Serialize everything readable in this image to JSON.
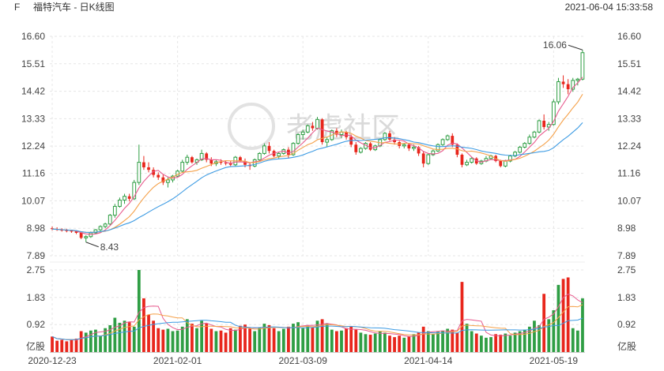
{
  "header": {
    "symbol": "F",
    "title": "福特汽车 - 日K线图",
    "datetime": "2021-06-04 15:33:58"
  },
  "watermark": "老虎社区",
  "colors": {
    "up": "#2f9e44",
    "down": "#e8261c",
    "ma5": "#e75a8d",
    "ma10": "#f5a14a",
    "ma20": "#3d9be3",
    "grid": "#e6e6e6"
  },
  "chart_data": [
    {
      "type": "candlestick",
      "title": "",
      "price_ticks": [
        "16.60",
        "15.51",
        "14.42",
        "13.33",
        "12.24",
        "11.16",
        "10.07",
        "8.98",
        "7.89"
      ],
      "ylim": [
        7.89,
        16.6
      ],
      "x_tick_labels": [
        "2020-12-23",
        "2021-02-01",
        "2021-03-09",
        "2021-04-14",
        "2021-05-19"
      ],
      "annotations": [
        {
          "label": "16.06",
          "value": 16.06,
          "index": 110
        },
        {
          "label": "8.43",
          "value": 8.43,
          "index": 7
        }
      ],
      "ma_lines": [
        "MA5",
        "MA10",
        "MA20"
      ],
      "ohlc": [
        [
          8.98,
          9.05,
          8.9,
          8.95
        ],
        [
          8.95,
          9.02,
          8.88,
          8.92
        ],
        [
          8.92,
          8.98,
          8.85,
          8.9
        ],
        [
          8.9,
          8.96,
          8.82,
          8.88
        ],
        [
          8.88,
          8.92,
          8.8,
          8.86
        ],
        [
          8.86,
          8.9,
          8.75,
          8.8
        ],
        [
          8.8,
          8.82,
          8.55,
          8.6
        ],
        [
          8.6,
          8.7,
          8.43,
          8.65
        ],
        [
          8.65,
          8.85,
          8.6,
          8.8
        ],
        [
          8.8,
          8.95,
          8.75,
          8.92
        ],
        [
          8.92,
          9.1,
          8.85,
          9.05
        ],
        [
          9.05,
          9.2,
          8.98,
          9.15
        ],
        [
          9.15,
          9.55,
          9.1,
          9.5
        ],
        [
          9.5,
          9.95,
          9.4,
          9.85
        ],
        [
          9.85,
          10.2,
          9.8,
          10.1
        ],
        [
          10.1,
          10.35,
          9.95,
          10.25
        ],
        [
          10.25,
          10.35,
          10.05,
          10.15
        ],
        [
          10.15,
          10.9,
          10.1,
          10.8
        ],
        [
          10.8,
          12.3,
          10.7,
          11.6
        ],
        [
          11.6,
          11.85,
          11.3,
          11.4
        ],
        [
          11.4,
          11.6,
          11.2,
          11.3
        ],
        [
          11.3,
          11.4,
          11.0,
          11.1
        ],
        [
          11.1,
          11.2,
          10.9,
          11.0
        ],
        [
          11.0,
          11.1,
          10.7,
          10.8
        ],
        [
          10.8,
          11.0,
          10.6,
          10.9
        ],
        [
          10.9,
          11.1,
          10.8,
          11.05
        ],
        [
          11.05,
          11.3,
          11.0,
          11.25
        ],
        [
          11.25,
          11.7,
          11.2,
          11.6
        ],
        [
          11.6,
          11.9,
          11.5,
          11.8
        ],
        [
          11.8,
          11.85,
          11.55,
          11.6
        ],
        [
          11.6,
          11.75,
          11.5,
          11.7
        ],
        [
          11.7,
          12.1,
          11.65,
          11.95
        ],
        [
          11.95,
          12.0,
          11.6,
          11.7
        ],
        [
          11.7,
          11.8,
          11.45,
          11.55
        ],
        [
          11.55,
          11.7,
          11.45,
          11.62
        ],
        [
          11.62,
          11.72,
          11.5,
          11.58
        ],
        [
          11.58,
          11.68,
          11.48,
          11.55
        ],
        [
          11.55,
          11.65,
          11.45,
          11.5
        ],
        [
          11.5,
          11.85,
          11.45,
          11.8
        ],
        [
          11.8,
          11.85,
          11.6,
          11.65
        ],
        [
          11.65,
          11.75,
          11.4,
          11.5
        ],
        [
          11.5,
          11.6,
          11.3,
          11.45
        ],
        [
          11.45,
          11.75,
          11.4,
          11.7
        ],
        [
          11.7,
          12.0,
          11.65,
          11.95
        ],
        [
          11.95,
          12.35,
          11.9,
          12.25
        ],
        [
          12.25,
          12.4,
          11.95,
          12.05
        ],
        [
          12.05,
          12.1,
          11.8,
          11.85
        ],
        [
          11.85,
          12.0,
          11.75,
          11.95
        ],
        [
          11.95,
          12.15,
          11.9,
          12.1
        ],
        [
          12.1,
          12.2,
          11.75,
          11.9
        ],
        [
          11.9,
          12.4,
          11.85,
          12.35
        ],
        [
          12.35,
          12.75,
          12.3,
          12.7
        ],
        [
          12.7,
          12.9,
          12.5,
          12.8
        ],
        [
          12.8,
          13.1,
          12.75,
          13.05
        ],
        [
          13.05,
          13.2,
          12.85,
          12.95
        ],
        [
          12.95,
          13.4,
          12.9,
          13.3
        ],
        [
          13.3,
          13.35,
          12.3,
          12.4
        ],
        [
          12.4,
          12.6,
          12.2,
          12.5
        ],
        [
          12.5,
          12.9,
          12.45,
          12.85
        ],
        [
          12.85,
          12.95,
          12.6,
          12.7
        ],
        [
          12.7,
          12.9,
          12.55,
          12.8
        ],
        [
          12.8,
          12.85,
          12.5,
          12.6
        ],
        [
          12.6,
          12.7,
          12.2,
          12.3
        ],
        [
          12.3,
          12.4,
          11.9,
          12.0
        ],
        [
          12.0,
          12.2,
          11.95,
          12.15
        ],
        [
          12.15,
          12.4,
          12.1,
          12.35
        ],
        [
          12.35,
          12.4,
          12.05,
          12.1
        ],
        [
          12.1,
          12.3,
          12.05,
          12.25
        ],
        [
          12.25,
          12.55,
          12.2,
          12.5
        ],
        [
          12.5,
          12.8,
          12.45,
          12.75
        ],
        [
          12.75,
          12.85,
          12.45,
          12.5
        ],
        [
          12.5,
          12.6,
          12.3,
          12.4
        ],
        [
          12.4,
          12.45,
          12.15,
          12.25
        ],
        [
          12.25,
          12.35,
          12.15,
          12.3
        ],
        [
          12.3,
          12.35,
          12.05,
          12.15
        ],
        [
          12.15,
          12.3,
          12.05,
          12.2
        ],
        [
          12.2,
          12.25,
          11.85,
          11.95
        ],
        [
          11.95,
          12.05,
          11.4,
          11.55
        ],
        [
          11.55,
          11.95,
          11.5,
          11.9
        ],
        [
          11.9,
          12.1,
          11.85,
          12.05
        ],
        [
          12.05,
          12.35,
          12.0,
          12.3
        ],
        [
          12.3,
          12.55,
          12.25,
          12.5
        ],
        [
          12.5,
          12.7,
          12.45,
          12.65
        ],
        [
          12.65,
          12.75,
          12.2,
          12.3
        ],
        [
          12.3,
          12.35,
          11.8,
          11.9
        ],
        [
          11.9,
          11.95,
          11.4,
          11.5
        ],
        [
          11.5,
          11.7,
          11.45,
          11.6
        ],
        [
          11.6,
          11.8,
          11.55,
          11.75
        ],
        [
          11.75,
          11.8,
          11.5,
          11.55
        ],
        [
          11.55,
          11.7,
          11.5,
          11.65
        ],
        [
          11.65,
          11.85,
          11.6,
          11.75
        ],
        [
          11.75,
          11.9,
          11.7,
          11.85
        ],
        [
          11.85,
          11.9,
          11.6,
          11.65
        ],
        [
          11.65,
          11.7,
          11.4,
          11.45
        ],
        [
          11.45,
          11.7,
          11.4,
          11.65
        ],
        [
          11.65,
          11.9,
          11.6,
          11.85
        ],
        [
          11.85,
          12.05,
          11.8,
          12.0
        ],
        [
          12.0,
          12.25,
          11.95,
          12.2
        ],
        [
          12.2,
          12.4,
          12.15,
          12.35
        ],
        [
          12.35,
          12.7,
          12.3,
          12.6
        ],
        [
          12.6,
          12.85,
          12.55,
          12.8
        ],
        [
          12.8,
          13.3,
          12.75,
          13.25
        ],
        [
          13.25,
          13.5,
          12.9,
          13.0
        ],
        [
          13.0,
          13.2,
          12.85,
          13.1
        ],
        [
          13.1,
          14.1,
          13.05,
          14.0
        ],
        [
          14.0,
          14.95,
          13.9,
          14.8
        ],
        [
          14.8,
          15.05,
          14.55,
          14.7
        ],
        [
          14.7,
          14.9,
          14.3,
          14.5
        ],
        [
          14.5,
          14.95,
          14.4,
          14.85
        ],
        [
          14.85,
          14.95,
          14.65,
          14.9
        ],
        [
          14.9,
          16.06,
          14.85,
          15.95
        ]
      ],
      "volume_ticks": [
        "2.75",
        "1.83",
        "0.92",
        "亿股"
      ],
      "volume_ylim": [
        0,
        2.75
      ],
      "volume_unit": "亿股",
      "volumes": [
        0.52,
        0.38,
        0.41,
        0.36,
        0.4,
        0.45,
        0.7,
        0.65,
        0.72,
        0.75,
        0.55,
        0.8,
        0.9,
        1.15,
        0.98,
        1.05,
        1.0,
        0.85,
        2.75,
        1.8,
        1.25,
        1.05,
        0.8,
        0.75,
        0.78,
        0.7,
        0.72,
        0.85,
        1.1,
        0.95,
        0.8,
        1.05,
        0.95,
        0.78,
        0.7,
        0.72,
        0.65,
        0.8,
        0.75,
        0.88,
        0.92,
        0.78,
        0.7,
        0.82,
        0.95,
        0.9,
        0.8,
        0.7,
        0.78,
        0.85,
        0.95,
        1.0,
        0.8,
        0.88,
        0.82,
        1.05,
        1.1,
        0.95,
        0.75,
        0.7,
        0.72,
        0.8,
        0.85,
        0.75,
        0.65,
        0.6,
        0.58,
        0.62,
        0.7,
        0.65,
        0.55,
        0.5,
        0.55,
        0.48,
        0.52,
        0.6,
        0.65,
        0.85,
        0.7,
        0.6,
        0.68,
        0.72,
        0.78,
        0.75,
        0.65,
        2.35,
        0.95,
        0.7,
        0.62,
        0.55,
        0.48,
        0.5,
        0.6,
        0.58,
        0.62,
        0.55,
        0.65,
        0.7,
        0.75,
        0.85,
        1.05,
        0.9,
        1.95,
        1.1,
        1.4,
        2.25,
        2.45,
        2.5,
        0.8,
        0.72,
        1.8
      ],
      "x_tick_indices": [
        0,
        26,
        52,
        78,
        104
      ]
    }
  ]
}
